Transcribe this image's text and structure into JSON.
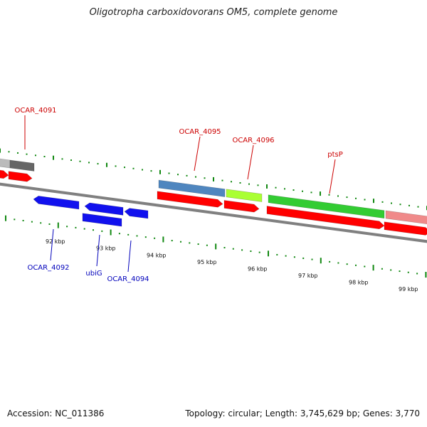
{
  "title": "Oligotropha carboxidovorans OM5, complete genome",
  "footer": {
    "accession": "Accession: NC_011386",
    "summary": "Topology: circular; Length: 3,745,629 bp; Genes: 3,770"
  },
  "ticks": [
    "92 kbp",
    "93 kbp",
    "94 kbp",
    "95 kbp",
    "96 kbp",
    "97 kbp",
    "98 kbp",
    "99 kbp"
  ],
  "genes": {
    "forward": [
      "OCAR_4091",
      "OCAR_4095",
      "OCAR_4096",
      "ptsP"
    ],
    "reverse": [
      "OCAR_4092",
      "ubiG",
      "OCAR_4094"
    ]
  },
  "colors": {
    "forward_label": "#cc0000",
    "reverse_label": "#0000bb",
    "cds_red": "#ff0000",
    "reverse_blue": "#1111ee",
    "steel_blue": "#4f86bf",
    "lime": "#aaff33",
    "green": "#33cc33",
    "pink": "#f08a8a",
    "grey_dark": "#666666",
    "grey_light": "#bbbbbb",
    "backbone": "#808080",
    "tick_green": "#118811"
  }
}
